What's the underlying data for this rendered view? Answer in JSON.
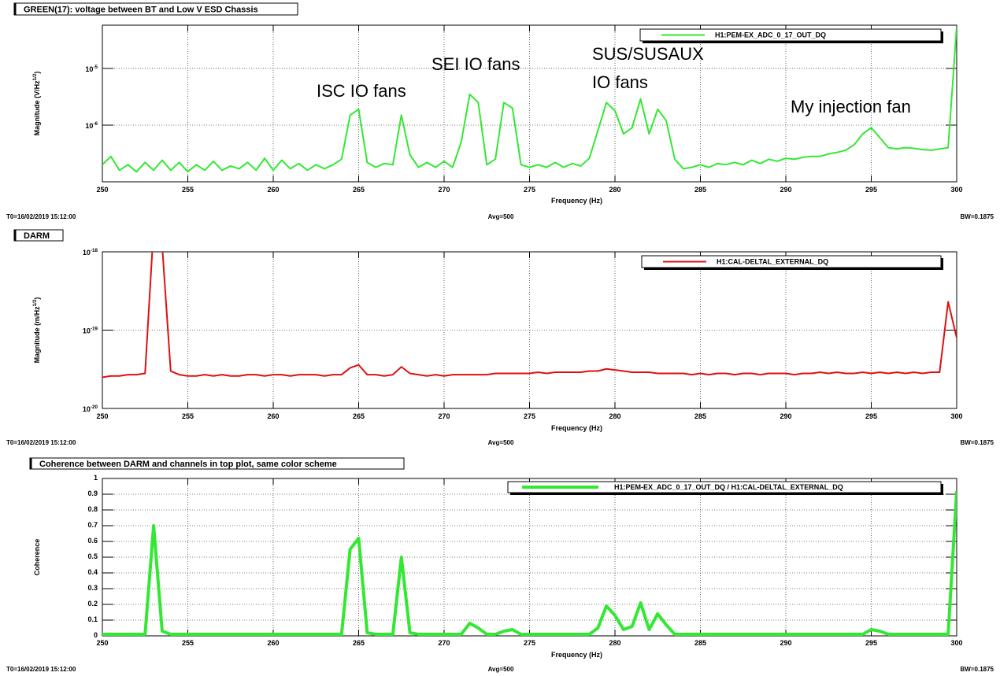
{
  "chart_data": [
    {
      "type": "line",
      "title": "GREEN(17): voltage between BT and Low V ESD Chassis",
      "xlabel": "Frequency (Hz)",
      "ylabel": "Magnitude (V/Hz^{1/2})",
      "xlim": [
        250,
        300
      ],
      "xticks": [
        250,
        255,
        260,
        265,
        270,
        275,
        280,
        285,
        290,
        295,
        300
      ],
      "ylim": [
        1e-07,
        5.8e-05
      ],
      "log_y": true,
      "yticks": [
        {
          "value": 1e-06,
          "label": "10^{-6}"
        },
        {
          "value": 1e-05,
          "label": "10^{-5}"
        }
      ],
      "grid": true,
      "legend": "top-right",
      "annotations": [
        "ISC IO fans",
        "SEI IO fans",
        "SUS/SUSAUX",
        "IO fans",
        "My injection fan"
      ],
      "footer": [
        "T0=16/02/2019 15:12:00",
        "Avg=500",
        "BW=0.1875"
      ],
      "x": [
        250,
        250.5,
        251,
        251.5,
        252,
        252.5,
        253,
        253.5,
        254,
        254.5,
        255,
        255.5,
        256,
        256.5,
        257,
        257.5,
        258,
        258.5,
        259,
        259.5,
        260,
        260.5,
        261,
        261.5,
        262,
        262.5,
        263,
        263.5,
        264,
        264.5,
        265,
        265.5,
        266,
        266.5,
        267,
        267.5,
        268,
        268.5,
        269,
        269.5,
        270,
        270.5,
        271,
        271.5,
        272,
        272.5,
        273,
        273.5,
        274,
        274.5,
        275,
        275.5,
        276,
        276.5,
        277,
        277.5,
        278,
        278.5,
        279,
        279.5,
        280,
        280.5,
        281,
        281.5,
        282,
        282.5,
        283,
        283.5,
        284,
        284.5,
        285,
        285.5,
        286,
        286.5,
        287,
        287.5,
        288,
        288.5,
        289,
        289.5,
        290,
        290.5,
        291,
        291.5,
        292,
        292.5,
        293,
        293.5,
        294,
        294.5,
        295,
        295.5,
        296,
        296.5,
        297,
        297.5,
        298,
        298.5,
        299,
        299.5,
        300
      ],
      "series": [
        {
          "name": "H1:PEM-EX_ADC_0_17_OUT_DQ",
          "color": "#33e833",
          "width": 2,
          "values": [
            2e-07,
            2.8e-07,
            1.6e-07,
            2e-07,
            1.5e-07,
            2.2e-07,
            1.6e-07,
            2.4e-07,
            1.6e-07,
            2.2e-07,
            1.5e-07,
            2e-07,
            1.6e-07,
            2.3e-07,
            1.6e-07,
            1.9e-07,
            1.7e-07,
            2.2e-07,
            1.6e-07,
            2.6e-07,
            1.6e-07,
            2.4e-07,
            1.7e-07,
            2.1e-07,
            1.6e-07,
            2e-07,
            1.7e-07,
            2e-07,
            2.5e-07,
            1.5e-06,
            1.9e-06,
            2.2e-07,
            1.8e-07,
            2.1e-07,
            2e-07,
            1.5e-06,
            3e-07,
            1.8e-07,
            2.2e-07,
            1.8e-07,
            2.3e-07,
            1.8e-07,
            5e-07,
            3.5e-06,
            2.5e-06,
            2e-07,
            2.5e-07,
            2.5e-06,
            2e-06,
            2e-07,
            1.8e-07,
            2e-07,
            1.8e-07,
            2.2e-07,
            1.8e-07,
            2.1e-07,
            1.9e-07,
            2.6e-07,
            8e-07,
            2.5e-06,
            1.8e-06,
            7e-07,
            9e-07,
            2.9e-06,
            7e-07,
            1.9e-06,
            1.2e-06,
            2.5e-07,
            1.7e-07,
            1.8e-07,
            2e-07,
            1.8e-07,
            2.1e-07,
            2e-07,
            2.2e-07,
            2e-07,
            2.4e-07,
            2.1e-07,
            2.5e-07,
            2.3e-07,
            2.6e-07,
            2.5e-07,
            2.7e-07,
            2.8e-07,
            2.8e-07,
            3.1e-07,
            3.3e-07,
            3.6e-07,
            4.5e-07,
            7e-07,
            9e-07,
            6e-07,
            4e-07,
            3.8e-07,
            4e-07,
            3.9e-07,
            3.7e-07,
            3.6e-07,
            3.8e-07,
            4e-07,
            5.5e-05
          ]
        }
      ]
    },
    {
      "type": "line",
      "title": "DARM",
      "xlabel": "Frequency (Hz)",
      "ylabel": "Magnitude (m/Hz^{1/2})",
      "xlim": [
        250,
        300
      ],
      "xticks": [
        250,
        255,
        260,
        265,
        270,
        275,
        280,
        285,
        290,
        295,
        300
      ],
      "ylim": [
        1e-20,
        1e-18
      ],
      "log_y": true,
      "yticks": [
        {
          "value": 1e-20,
          "label": "10^{-20}"
        },
        {
          "value": 1e-19,
          "label": "10^{-19}"
        },
        {
          "value": 1e-18,
          "label": "10^{-18}"
        }
      ],
      "grid": true,
      "legend": "top-right",
      "footer": [
        "T0=16/02/2019 15:12:00",
        "Avg=500",
        "BW=0.1875"
      ],
      "x": [
        250,
        250.5,
        251,
        251.5,
        252,
        252.5,
        253,
        253.5,
        254,
        254.5,
        255,
        255.5,
        256,
        256.5,
        257,
        257.5,
        258,
        258.5,
        259,
        259.5,
        260,
        260.5,
        261,
        261.5,
        262,
        262.5,
        263,
        263.5,
        264,
        264.5,
        265,
        265.5,
        266,
        266.5,
        267,
        267.5,
        268,
        268.5,
        269,
        269.5,
        270,
        270.5,
        271,
        271.5,
        272,
        272.5,
        273,
        273.5,
        274,
        274.5,
        275,
        275.5,
        276,
        276.5,
        277,
        277.5,
        278,
        278.5,
        279,
        279.5,
        280,
        280.5,
        281,
        281.5,
        282,
        282.5,
        283,
        283.5,
        284,
        284.5,
        285,
        285.5,
        286,
        286.5,
        287,
        287.5,
        288,
        288.5,
        289,
        289.5,
        290,
        290.5,
        291,
        291.5,
        292,
        292.5,
        293,
        293.5,
        294,
        294.5,
        295,
        295.5,
        296,
        296.5,
        297,
        297.5,
        298,
        298.5,
        299,
        299.5,
        300
      ],
      "series": [
        {
          "name": "H1:CAL-DELTAL_EXTERNAL_DQ",
          "color": "#dd1111",
          "width": 2,
          "values": [
            2.5e-20,
            2.6e-20,
            2.6e-20,
            2.7e-20,
            2.7e-20,
            2.8e-20,
            2e-18,
            1.2e-18,
            3e-20,
            2.7e-20,
            2.6e-20,
            2.6e-20,
            2.7e-20,
            2.6e-20,
            2.7e-20,
            2.6e-20,
            2.6e-20,
            2.7e-20,
            2.7e-20,
            2.6e-20,
            2.7e-20,
            2.7e-20,
            2.6e-20,
            2.7e-20,
            2.7e-20,
            2.7e-20,
            2.6e-20,
            2.7e-20,
            2.7e-20,
            3.3e-20,
            3.6e-20,
            2.7e-20,
            2.7e-20,
            2.6e-20,
            2.7e-20,
            3.4e-20,
            2.8e-20,
            2.7e-20,
            2.6e-20,
            2.7e-20,
            2.6e-20,
            2.7e-20,
            2.7e-20,
            2.7e-20,
            2.7e-20,
            2.7e-20,
            2.8e-20,
            2.8e-20,
            2.8e-20,
            2.8e-20,
            2.8e-20,
            2.9e-20,
            2.8e-20,
            2.9e-20,
            2.9e-20,
            2.9e-20,
            2.9e-20,
            3e-20,
            3e-20,
            3.2e-20,
            3.1e-20,
            3e-20,
            2.9e-20,
            2.9e-20,
            2.9e-20,
            2.8e-20,
            2.8e-20,
            2.8e-20,
            2.8e-20,
            2.7e-20,
            2.8e-20,
            2.7e-20,
            2.8e-20,
            2.8e-20,
            2.7e-20,
            2.8e-20,
            2.8e-20,
            2.7e-20,
            2.8e-20,
            2.8e-20,
            2.8e-20,
            2.7e-20,
            2.8e-20,
            2.8e-20,
            2.9e-20,
            2.8e-20,
            2.9e-20,
            2.8e-20,
            2.8e-20,
            2.9e-20,
            2.8e-20,
            2.9e-20,
            2.8e-20,
            2.9e-20,
            2.8e-20,
            2.9e-20,
            2.8e-20,
            2.9e-20,
            2.9e-20,
            2.3e-19,
            8e-20
          ]
        }
      ]
    },
    {
      "type": "line",
      "title": "Coherence between DARM and channels in top plot, same color scheme",
      "xlabel": "Frequency (Hz)",
      "ylabel": "Coherence",
      "xlim": [
        250,
        300
      ],
      "xticks": [
        250,
        255,
        260,
        265,
        270,
        275,
        280,
        285,
        290,
        295,
        300
      ],
      "ylim": [
        0,
        1
      ],
      "log_y": false,
      "yticks": [
        0,
        0.1,
        0.2,
        0.3,
        0.4,
        0.5,
        0.6,
        0.7,
        0.8,
        0.9,
        1
      ],
      "grid": true,
      "legend": "top-right",
      "footer": [
        "T0=16/02/2019 15:12:00",
        "Avg=500",
        "BW=0.1875"
      ],
      "x": [
        250,
        250.5,
        251,
        251.5,
        252,
        252.5,
        253,
        253.5,
        254,
        254.5,
        255,
        255.5,
        256,
        256.5,
        257,
        257.5,
        258,
        258.5,
        259,
        259.5,
        260,
        260.5,
        261,
        261.5,
        262,
        262.5,
        263,
        263.5,
        264,
        264.5,
        265,
        265.5,
        266,
        266.5,
        267,
        267.5,
        268,
        268.5,
        269,
        269.5,
        270,
        270.5,
        271,
        271.5,
        272,
        272.5,
        273,
        273.5,
        274,
        274.5,
        275,
        275.5,
        276,
        276.5,
        277,
        277.5,
        278,
        278.5,
        279,
        279.5,
        280,
        280.5,
        281,
        281.5,
        282,
        282.5,
        283,
        283.5,
        284,
        284.5,
        285,
        285.5,
        286,
        286.5,
        287,
        287.5,
        288,
        288.5,
        289,
        289.5,
        290,
        290.5,
        291,
        291.5,
        292,
        292.5,
        293,
        293.5,
        294,
        294.5,
        295,
        295.5,
        296,
        296.5,
        297,
        297.5,
        298,
        298.5,
        299,
        299.5,
        300
      ],
      "series": [
        {
          "name": "H1:PEM-EX_ADC_0_17_OUT_DQ / H1:CAL-DELTAL_EXTERNAL_DQ",
          "color": "#33e833",
          "width": 4,
          "values": [
            0.01,
            0.01,
            0.01,
            0.01,
            0.01,
            0.01,
            0.7,
            0.03,
            0.01,
            0.01,
            0.01,
            0.01,
            0.01,
            0.01,
            0.01,
            0.01,
            0.01,
            0.01,
            0.01,
            0.01,
            0.01,
            0.01,
            0.01,
            0.01,
            0.01,
            0.01,
            0.01,
            0.01,
            0.01,
            0.55,
            0.62,
            0.02,
            0.01,
            0.01,
            0.01,
            0.5,
            0.02,
            0.01,
            0.01,
            0.01,
            0.01,
            0.01,
            0.01,
            0.08,
            0.05,
            0.01,
            0.01,
            0.03,
            0.04,
            0.01,
            0.01,
            0.01,
            0.01,
            0.01,
            0.01,
            0.01,
            0.01,
            0.01,
            0.05,
            0.19,
            0.13,
            0.04,
            0.06,
            0.21,
            0.04,
            0.14,
            0.07,
            0.01,
            0.01,
            0.01,
            0.01,
            0.01,
            0.01,
            0.01,
            0.01,
            0.01,
            0.01,
            0.01,
            0.01,
            0.01,
            0.01,
            0.01,
            0.01,
            0.01,
            0.01,
            0.01,
            0.01,
            0.01,
            0.01,
            0.01,
            0.04,
            0.03,
            0.01,
            0.01,
            0.01,
            0.01,
            0.01,
            0.01,
            0.01,
            0.01,
            0.92
          ]
        }
      ]
    }
  ]
}
